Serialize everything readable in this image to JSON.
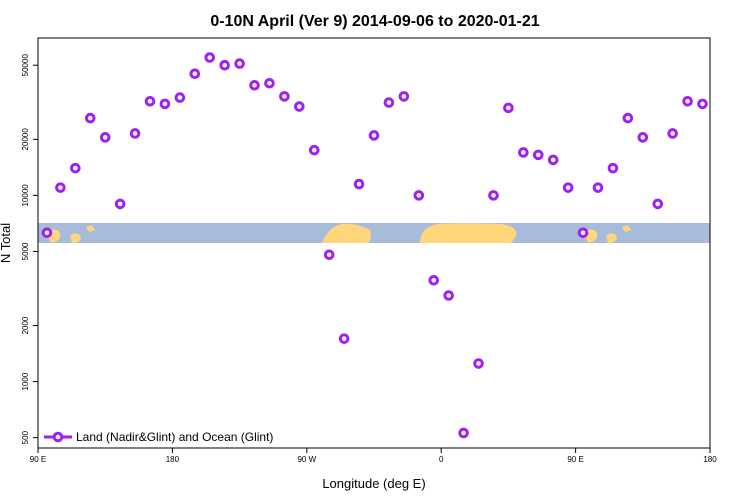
{
  "chart_data": {
    "type": "scatter",
    "title": "0-10N April (Ver 9)   2014-09-06 to 2020-01-21",
    "xlabel": "Longitude (deg E)",
    "ylabel": "N Total",
    "y_scale": "log",
    "ylim": [
      440,
      70000
    ],
    "x_ticks": [
      {
        "value": 90,
        "label": "90 E"
      },
      {
        "value": 180,
        "label": "180"
      },
      {
        "value": 270,
        "label": "90 W"
      },
      {
        "value": 360,
        "label": "0"
      },
      {
        "value": 450,
        "label": "90 E"
      },
      {
        "value": 540,
        "label": "180"
      }
    ],
    "xlim": [
      90,
      540
    ],
    "y_ticks": [
      500,
      1000,
      2000,
      5000,
      10000,
      20000,
      50000
    ],
    "series": [
      {
        "name": "Land (Nadir&Glint) and Ocean (Glint)",
        "color": "#a020f0",
        "marker": "open-circle",
        "x": [
          96,
          105,
          115,
          125,
          135,
          145,
          155,
          165,
          175,
          185,
          195,
          205,
          215,
          225,
          235,
          245,
          255,
          265,
          275,
          285,
          295,
          305,
          315,
          325,
          335,
          345,
          355,
          365,
          375,
          385,
          395,
          405,
          415,
          425,
          435,
          445,
          455,
          465,
          475,
          485,
          495,
          505,
          515,
          525,
          535
        ],
        "y": [
          6300,
          11000,
          14000,
          26000,
          20500,
          9000,
          21500,
          32000,
          31000,
          33500,
          45000,
          55000,
          50000,
          51000,
          39000,
          40000,
          34000,
          30000,
          17500,
          4800,
          1700,
          11500,
          21000,
          31500,
          34000,
          10000,
          3500,
          2900,
          530,
          1250,
          10000,
          29500,
          17000,
          16500,
          15500,
          11000,
          6300,
          11000,
          14000,
          26000,
          20500,
          9000,
          21500,
          32000,
          31000
        ]
      }
    ],
    "legend_position": "bottom-left",
    "map_band": {
      "ocean_color": "#a7bcdb",
      "land_color": "#ffd77a"
    }
  }
}
